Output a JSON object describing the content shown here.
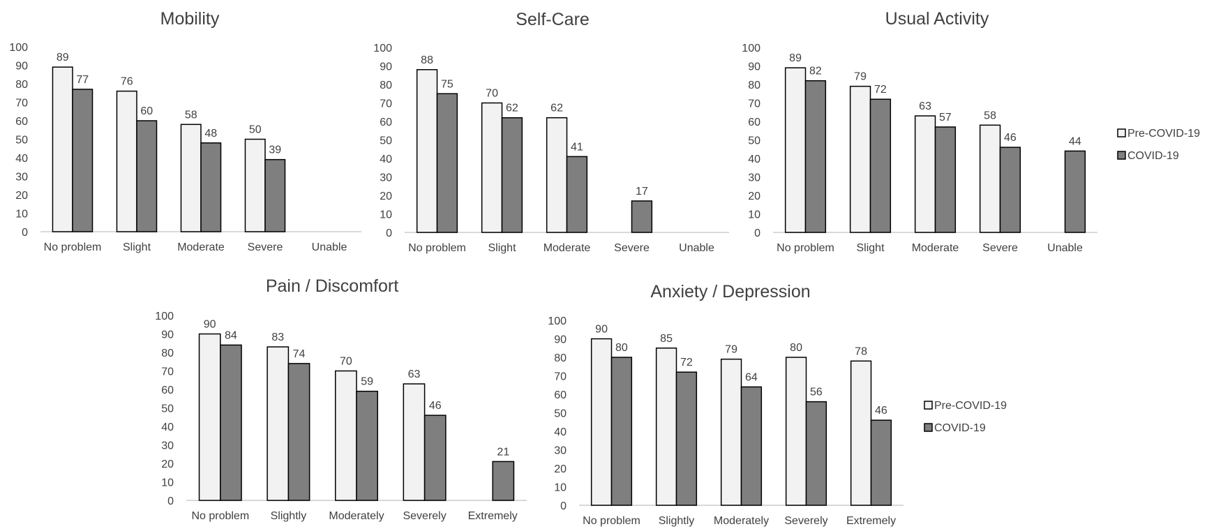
{
  "colors": {
    "pre": "#f2f2f2",
    "covid": "#7f7f7f",
    "outline": "#000000",
    "axis": "#d9d9d9",
    "text": "#404040"
  },
  "legend_labels": [
    "Pre-COVID-19",
    "COVID-19"
  ],
  "chart_data": [
    {
      "type": "bar",
      "title": "Mobility",
      "categories": [
        "No problem",
        "Slight",
        "Moderate",
        "Severe",
        "Unable"
      ],
      "series": [
        {
          "name": "Pre-COVID-19",
          "values": [
            89,
            76,
            58,
            50,
            null
          ]
        },
        {
          "name": "COVID-19",
          "values": [
            77,
            60,
            48,
            39,
            null
          ]
        }
      ],
      "y_ticks": [
        "0",
        "10",
        "20",
        "30",
        "40",
        "50",
        "60",
        "70",
        "80",
        "90",
        "100"
      ],
      "ylim": [
        0,
        100
      ],
      "grid": false,
      "legend": "none"
    },
    {
      "type": "bar",
      "title": "Self-Care",
      "categories": [
        "No problem",
        "Slight",
        "Moderate",
        "Severe",
        "Unable"
      ],
      "series": [
        {
          "name": "Pre-COVID-19",
          "values": [
            88,
            70,
            62,
            null,
            null
          ]
        },
        {
          "name": "COVID-19",
          "values": [
            75,
            62,
            41,
            17,
            null
          ]
        }
      ],
      "y_ticks": [
        "0",
        "10",
        "20",
        "30",
        "40",
        "50",
        "60",
        "70",
        "80",
        "90",
        "100"
      ],
      "ylim": [
        0,
        100
      ],
      "grid": false,
      "legend": "none"
    },
    {
      "type": "bar",
      "title": "Usual Activity",
      "categories": [
        "No problem",
        "Slight",
        "Moderate",
        "Severe",
        "Unable"
      ],
      "series": [
        {
          "name": "Pre-COVID-19",
          "values": [
            89,
            79,
            63,
            58,
            null
          ]
        },
        {
          "name": "COVID-19",
          "values": [
            82,
            72,
            57,
            46,
            44
          ]
        }
      ],
      "y_ticks": [
        "0",
        "10",
        "20",
        "30",
        "40",
        "50",
        "60",
        "70",
        "80",
        "90",
        "100"
      ],
      "ylim": [
        0,
        100
      ],
      "grid": false,
      "legend": "right"
    },
    {
      "type": "bar",
      "title": "Pain / Discomfort",
      "categories": [
        "No problem",
        "Slightly",
        "Moderately",
        "Severely",
        "Extremely"
      ],
      "series": [
        {
          "name": "Pre-COVID-19",
          "values": [
            90,
            83,
            70,
            63,
            null
          ]
        },
        {
          "name": "COVID-19",
          "values": [
            84,
            74,
            59,
            46,
            21
          ]
        }
      ],
      "y_ticks": [
        "0",
        "10",
        "20",
        "30",
        "40",
        "50",
        "60",
        "70",
        "80",
        "90",
        "100"
      ],
      "ylim": [
        0,
        100
      ],
      "grid": false,
      "legend": "none"
    },
    {
      "type": "bar",
      "title": "Anxiety / Depression",
      "categories": [
        "No problem",
        "Slightly",
        "Moderately",
        "Severely",
        "Extremely"
      ],
      "series": [
        {
          "name": "Pre-COVID-19",
          "values": [
            90,
            85,
            79,
            80,
            78
          ]
        },
        {
          "name": "COVID-19",
          "values": [
            80,
            72,
            64,
            56,
            46
          ]
        }
      ],
      "y_ticks": [
        "0",
        "10",
        "20",
        "30",
        "40",
        "50",
        "60",
        "70",
        "80",
        "90",
        "100"
      ],
      "ylim": [
        0,
        100
      ],
      "grid": false,
      "legend": "right"
    }
  ]
}
